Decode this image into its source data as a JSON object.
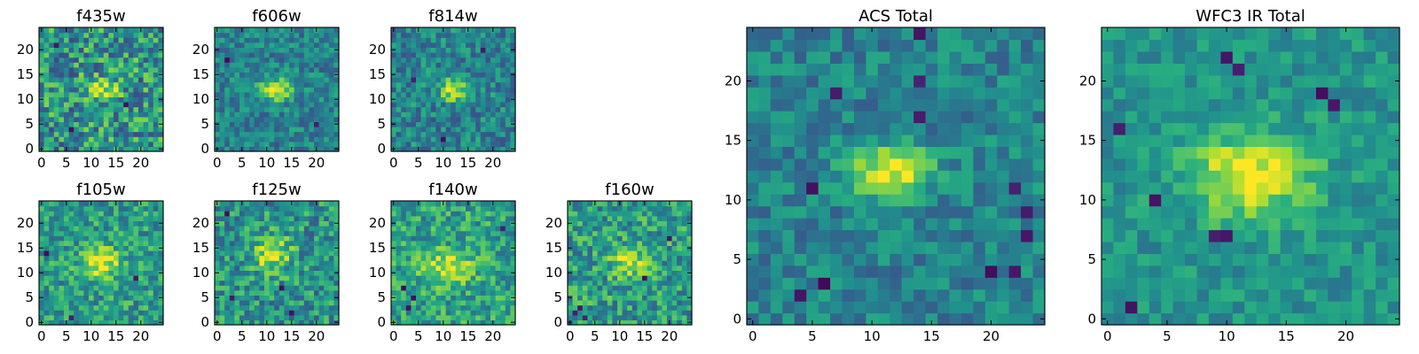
{
  "colormap": "viridis",
  "colormap_stops": [
    "#440154",
    "#472c7a",
    "#3b518b",
    "#2c718e",
    "#21908d",
    "#27ad81",
    "#5cc863",
    "#aadc32",
    "#fde725"
  ],
  "chart_data": [
    {
      "type": "heatmap",
      "title": "f435w",
      "xticks": [
        "0",
        "5",
        "10",
        "15",
        "20"
      ],
      "yticks": [
        "0",
        "5",
        "10",
        "15",
        "20"
      ],
      "xlim": [
        0,
        24
      ],
      "ylim": [
        0,
        24
      ],
      "grid": false,
      "noise": 0.3,
      "bias": 0.52,
      "peak": 0.42,
      "sigma_x": 2.3,
      "sigma_y": 1.6,
      "source_center": [
        12,
        12
      ],
      "dark_pixels": [
        [
          3,
          21
        ],
        [
          17,
          9
        ],
        [
          6,
          4
        ]
      ]
    },
    {
      "type": "heatmap",
      "title": "f606w",
      "xticks": [
        "0",
        "5",
        "10",
        "15",
        "20"
      ],
      "yticks": [
        "0",
        "5",
        "10",
        "15",
        "20"
      ],
      "xlim": [
        0,
        24
      ],
      "ylim": [
        0,
        24
      ],
      "grid": false,
      "noise": 0.18,
      "bias": 0.45,
      "peak": 0.52,
      "sigma_x": 2.2,
      "sigma_y": 1.5,
      "source_center": [
        12,
        12
      ],
      "dark_pixels": [
        [
          2,
          18
        ],
        [
          20,
          5
        ]
      ]
    },
    {
      "type": "heatmap",
      "title": "f814w",
      "xticks": [
        "0",
        "5",
        "10",
        "15",
        "20"
      ],
      "yticks": [
        "0",
        "5",
        "10",
        "15",
        "20"
      ],
      "xlim": [
        0,
        24
      ],
      "ylim": [
        0,
        24
      ],
      "grid": false,
      "noise": 0.2,
      "bias": 0.45,
      "peak": 0.52,
      "sigma_x": 2.0,
      "sigma_y": 1.6,
      "source_center": [
        12,
        12
      ],
      "dark_pixels": [
        [
          4,
          14
        ],
        [
          18,
          20
        ],
        [
          10,
          2
        ]
      ]
    },
    {
      "type": "heatmap",
      "title": "f105w",
      "xticks": [
        "0",
        "5",
        "10",
        "15",
        "20"
      ],
      "yticks": [
        "0",
        "5",
        "10",
        "15",
        "20"
      ],
      "xlim": [
        0,
        24
      ],
      "ylim": [
        0,
        24
      ],
      "grid": false,
      "noise": 0.22,
      "bias": 0.55,
      "peak": 0.42,
      "sigma_x": 2.6,
      "sigma_y": 2.2,
      "source_center": [
        12,
        12
      ],
      "dark_pixels": [
        [
          6,
          1
        ],
        [
          1,
          14
        ],
        [
          19,
          9
        ]
      ]
    },
    {
      "type": "heatmap",
      "title": "f125w",
      "xticks": [
        "0",
        "5",
        "10",
        "15",
        "20"
      ],
      "yticks": [
        "0",
        "5",
        "10",
        "15",
        "20"
      ],
      "xlim": [
        0,
        24
      ],
      "ylim": [
        0,
        24
      ],
      "grid": false,
      "noise": 0.24,
      "bias": 0.52,
      "peak": 0.45,
      "sigma_x": 2.5,
      "sigma_y": 2.4,
      "source_center": [
        11,
        14
      ],
      "dark_pixels": [
        [
          3,
          5
        ],
        [
          15,
          2
        ],
        [
          2,
          22
        ],
        [
          13,
          7
        ]
      ]
    },
    {
      "type": "heatmap",
      "title": "f140w",
      "xticks": [
        "0",
        "5",
        "10",
        "15",
        "20"
      ],
      "yticks": [
        "0",
        "5",
        "10",
        "15",
        "20"
      ],
      "xlim": [
        0,
        24
      ],
      "ylim": [
        0,
        24
      ],
      "grid": false,
      "noise": 0.22,
      "bias": 0.57,
      "peak": 0.4,
      "sigma_x": 3.5,
      "sigma_y": 2.2,
      "source_center": [
        11,
        11
      ],
      "dark_pixels": [
        [
          4,
          5
        ],
        [
          2,
          7
        ],
        [
          3,
          3
        ],
        [
          22,
          19
        ]
      ]
    },
    {
      "type": "heatmap",
      "title": "f160w",
      "xticks": [
        "0",
        "5",
        "10",
        "15",
        "20"
      ],
      "yticks": [
        "0",
        "5",
        "10",
        "15",
        "20"
      ],
      "xlim": [
        0,
        24
      ],
      "ylim": [
        0,
        24
      ],
      "grid": false,
      "noise": 0.24,
      "bias": 0.55,
      "peak": 0.42,
      "sigma_x": 2.4,
      "sigma_y": 2.2,
      "source_center": [
        12,
        12
      ],
      "dark_pixels": [
        [
          2,
          3
        ],
        [
          3,
          1
        ],
        [
          1,
          2
        ],
        [
          20,
          17
        ],
        [
          15,
          9
        ]
      ]
    },
    {
      "type": "heatmap",
      "title": "ACS Total",
      "xticks": [
        "0",
        "5",
        "10",
        "15",
        "20"
      ],
      "yticks": [
        "0",
        "5",
        "10",
        "15",
        "20"
      ],
      "xlim": [
        0,
        24
      ],
      "ylim": [
        0,
        24
      ],
      "grid": false,
      "noise": 0.16,
      "bias": 0.45,
      "peak": 0.55,
      "sigma_x": 2.4,
      "sigma_y": 1.4,
      "source_center": [
        11.5,
        12.5
      ],
      "dark_pixels": [
        [
          14,
          24
        ],
        [
          7,
          19
        ],
        [
          14,
          20
        ],
        [
          14,
          17
        ],
        [
          5,
          11
        ],
        [
          4,
          2
        ],
        [
          6,
          3
        ],
        [
          20,
          4
        ],
        [
          22,
          4
        ],
        [
          23,
          7
        ],
        [
          23,
          9
        ],
        [
          22,
          11
        ]
      ]
    },
    {
      "type": "heatmap",
      "title": "WFC3 IR Total",
      "xticks": [
        "0",
        "5",
        "10",
        "15",
        "20"
      ],
      "yticks": [
        "0",
        "5",
        "10",
        "15",
        "20"
      ],
      "xlim": [
        0,
        24
      ],
      "ylim": [
        0,
        24
      ],
      "grid": false,
      "noise": 0.13,
      "bias": 0.52,
      "peak": 0.48,
      "sigma_x": 3.6,
      "sigma_y": 2.4,
      "source_center": [
        12,
        12
      ],
      "dark_pixels": [
        [
          10,
          22
        ],
        [
          11,
          21
        ],
        [
          18,
          19
        ],
        [
          19,
          18
        ],
        [
          9,
          7
        ],
        [
          10,
          7
        ],
        [
          2,
          1
        ],
        [
          1,
          16
        ],
        [
          4,
          10
        ]
      ]
    }
  ]
}
